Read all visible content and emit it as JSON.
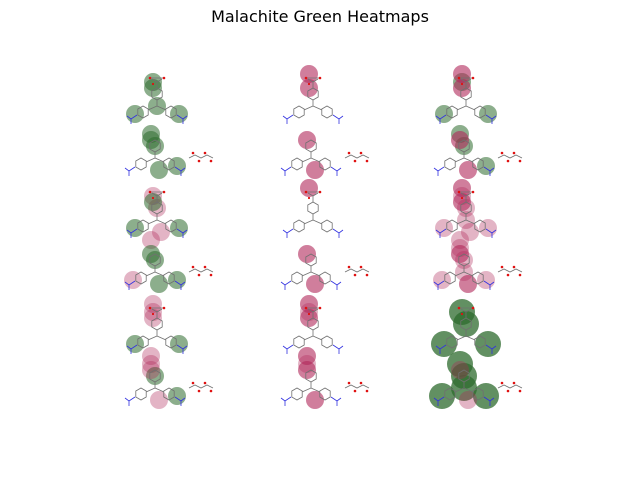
{
  "figure": {
    "title": "Malachite Green Heatmaps"
  },
  "colors": {
    "bond": "#707070",
    "nitrogen": "#3030e0",
    "oxygen": "#e01010",
    "heat_positive": "#2e6b2e",
    "heat_negative": "#b0285a",
    "background": "#ffffff"
  },
  "panels": [
    {
      "row": 1,
      "col": 1,
      "glow": [
        "g",
        "n",
        "g",
        "g",
        "g",
        "n",
        "n",
        "g",
        "g",
        "g",
        "n",
        "g",
        "n",
        "n",
        "g",
        "g"
      ]
    },
    {
      "row": 1,
      "col": 2,
      "glow": [
        "n",
        "n",
        "n",
        "n",
        "n",
        "s",
        "n",
        "s",
        "n",
        "n",
        "n",
        "n",
        "n",
        "n",
        "s",
        "s"
      ]
    },
    {
      "row": 1,
      "col": 3,
      "glow": [
        "g",
        "n",
        "g",
        "g",
        "n",
        "s",
        "n",
        "s",
        "g",
        "g",
        "n",
        "g",
        "n",
        "n",
        "s",
        "s"
      ]
    },
    {
      "row": 2,
      "col": 1,
      "glow": [
        "m",
        "m",
        "g",
        "g",
        "n",
        "n",
        "m",
        "g",
        "n",
        "g",
        "m",
        "g",
        "n",
        "m",
        "g",
        "g"
      ]
    },
    {
      "row": 2,
      "col": 2,
      "glow": [
        "n",
        "n",
        "n",
        "n",
        "n",
        "s",
        "n",
        "n",
        "n",
        "n",
        "n",
        "n",
        "n",
        "n",
        "s",
        "s"
      ]
    },
    {
      "row": 2,
      "col": 3,
      "glow": [
        "m",
        "m",
        "m",
        "m",
        "m",
        "s",
        "m",
        "s",
        "m",
        "m",
        "m",
        "m",
        "m",
        "m",
        "s",
        "s"
      ]
    },
    {
      "row": 3,
      "col": 1,
      "glow": [
        "m",
        "n",
        "g",
        "g",
        "n",
        "m",
        "n",
        "m",
        "m",
        "g",
        "n",
        "g",
        "n",
        "m",
        "m",
        "m"
      ]
    },
    {
      "row": 3,
      "col": 2,
      "glow": [
        "m",
        "n",
        "n",
        "n",
        "n",
        "s",
        "n",
        "s",
        "m",
        "n",
        "n",
        "n",
        "n",
        "s",
        "s",
        "s"
      ]
    },
    {
      "row": 3,
      "col": 3,
      "glow": [
        "G",
        "G",
        "G",
        "G",
        "n",
        "n",
        "n",
        "n",
        "G",
        "G",
        "G",
        "G",
        "G",
        "n",
        "m",
        "m"
      ]
    }
  ]
}
